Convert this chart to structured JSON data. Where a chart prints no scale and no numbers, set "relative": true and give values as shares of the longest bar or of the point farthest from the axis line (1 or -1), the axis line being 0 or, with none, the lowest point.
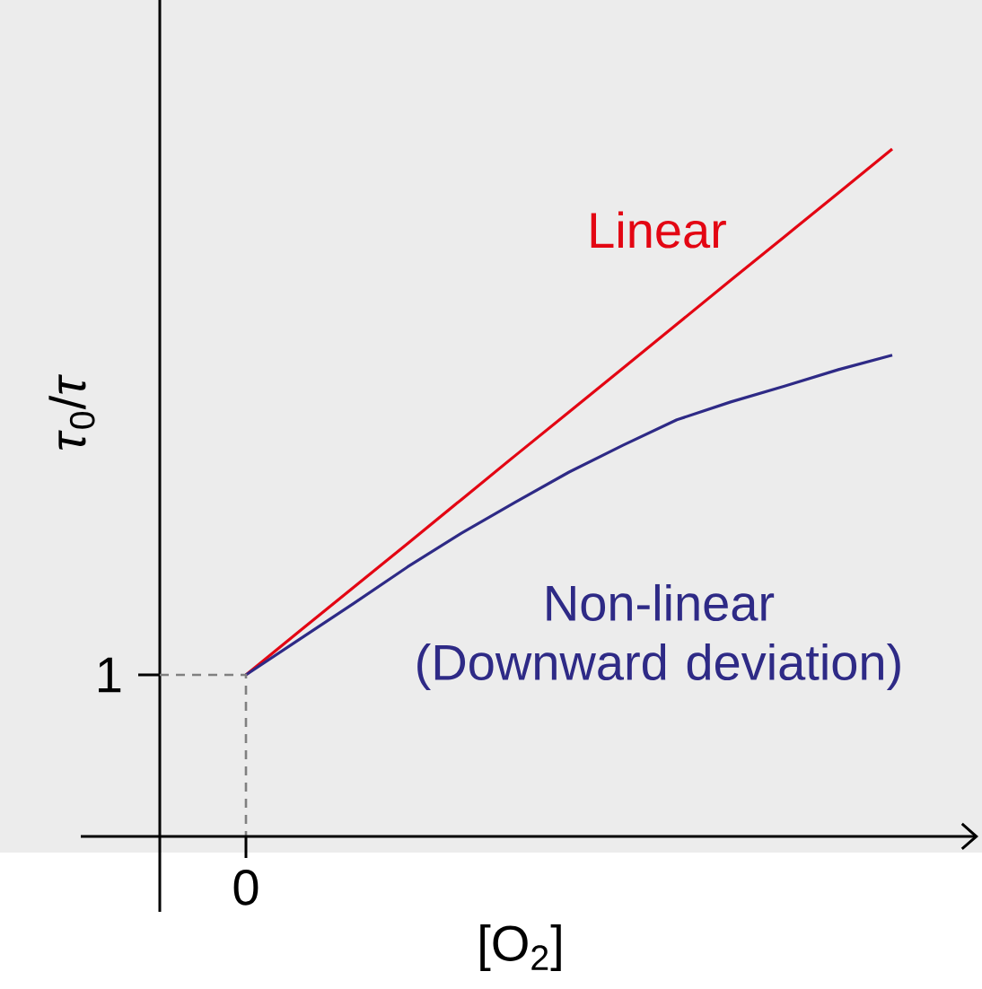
{
  "chart_data": {
    "type": "line",
    "relative": true,
    "xlabel": "[O$_{2}$]",
    "ylabel": "*τ*$_{0}$/*τ*",
    "categories": [
      null,
      null,
      null,
      null,
      null,
      null,
      null,
      null,
      null,
      null,
      null,
      null,
      null
    ],
    "series": [
      {
        "name": "Linear",
        "color": "#e30613",
        "values": [
          0.235,
          0.299,
          0.3625,
          0.426,
          0.49,
          0.554,
          0.6175,
          0.681,
          0.745,
          0.809,
          0.8725,
          0.936,
          1.0
        ]
      },
      {
        "name": "Non-linear (Downward deviation)",
        "color": "#2e2a86",
        "values": [
          0.235,
          0.287,
          0.339,
          0.392,
          0.441,
          0.486,
          0.53,
          0.569,
          0.606,
          0.632,
          0.655,
          0.679,
          0.7
        ]
      }
    ],
    "annotations": [
      "1",
      "0"
    ],
    "marker": "none",
    "line_style": "solid"
  }
}
